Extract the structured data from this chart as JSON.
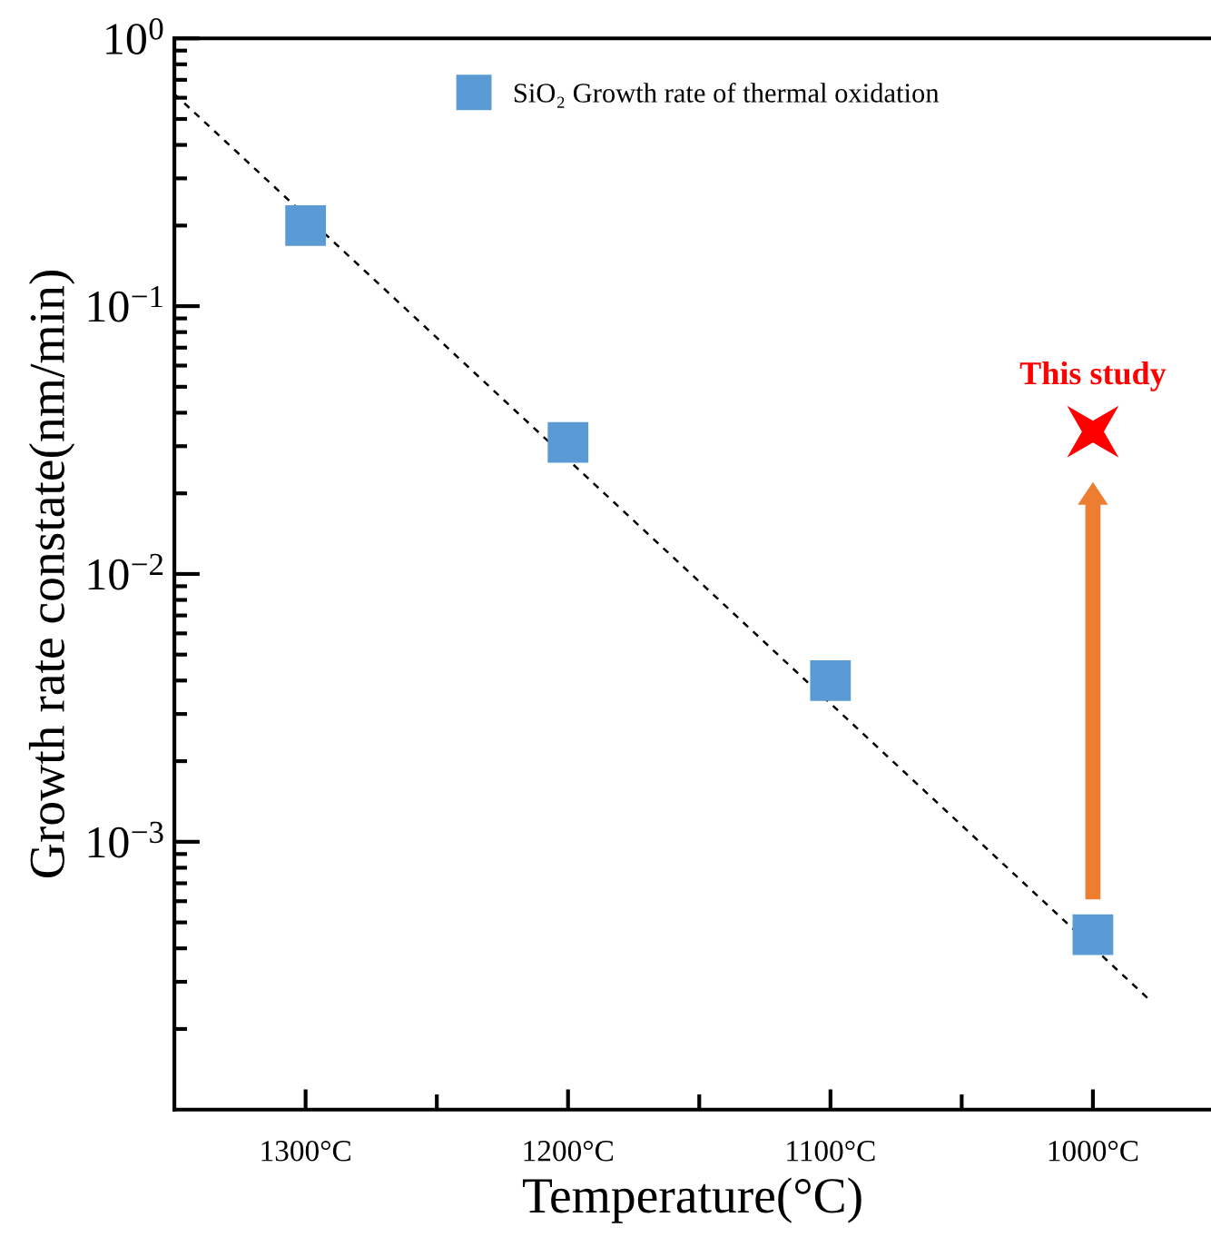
{
  "chart_data": {
    "type": "scatter",
    "xlabel": "Temperature(°C)",
    "ylabel": "Growth rate constate(nm/min)",
    "log": "y",
    "xlim": [
      1350,
      955
    ],
    "ylim": [
      0.0001,
      1
    ],
    "xticks": [
      {
        "value": 1300,
        "label": "1300°C"
      },
      {
        "value": 1250,
        "label": null
      },
      {
        "value": 1200,
        "label": "1200°C"
      },
      {
        "value": 1150,
        "label": null
      },
      {
        "value": 1100,
        "label": "1100°C"
      },
      {
        "value": 1050,
        "label": null
      },
      {
        "value": 1000,
        "label": "1000°C"
      }
    ],
    "yticks": [
      {
        "value": 1,
        "label": "10$^{0}$"
      },
      {
        "value": 0.1,
        "label": "10$^{−1}$"
      },
      {
        "value": 0.01,
        "label": "10$^{−2}$"
      },
      {
        "value": 0.001,
        "label": "10$^{−3}$"
      }
    ],
    "legend": "top",
    "grid": false,
    "series": [
      {
        "name": "SiO₂ Growth rate of thermal oxidation",
        "marker": "square",
        "color": "#5b9bd5",
        "x": [
          1300,
          1200,
          1100,
          1000
        ],
        "values": [
          0.2,
          0.031,
          0.004,
          0.00045
        ]
      },
      {
        "type": "line",
        "line_style": "dashed",
        "marker": "none",
        "color": "#000000",
        "x": [
          1350,
          979
        ],
        "values": [
          0.62,
          0.00026
        ]
      },
      {
        "name": "This study",
        "marker": "star",
        "color": "#ff0000",
        "x": [
          1000
        ],
        "values": [
          0.034
        ]
      }
    ]
  }
}
